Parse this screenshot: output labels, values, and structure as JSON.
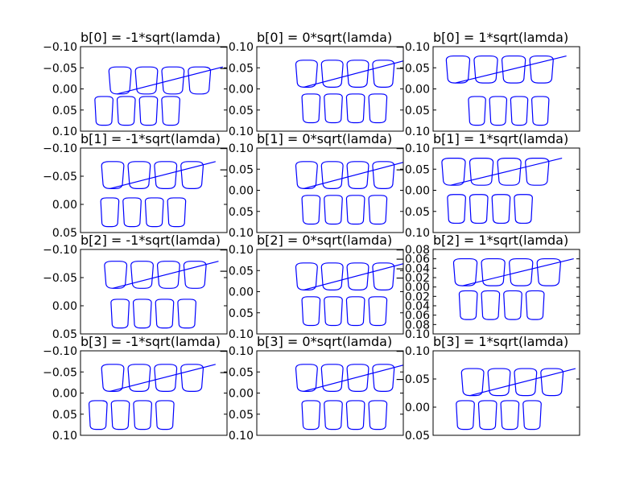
{
  "chart_data": [
    {
      "type": "line",
      "title": "b[0] = -1*sqrt(lamda)",
      "yticks": [
        "−0.10",
        "−0.05",
        "0.00",
        "0.05",
        "0.10"
      ],
      "ylim": [
        -0.1,
        0.1
      ],
      "color": "#0000ff"
    },
    {
      "type": "line",
      "title": "b[0] = 0*sqrt(lamda)",
      "yticks": [
        "−0.10",
        "−0.05",
        "0.00",
        "0.05",
        "0.10"
      ],
      "ylim": [
        -0.1,
        0.1
      ],
      "color": "#0000ff"
    },
    {
      "type": "line",
      "title": "b[0] = 1*sqrt(lamda)",
      "yticks": [
        "−0.10",
        "−0.05",
        "0.00",
        "0.05",
        "0.10"
      ],
      "ylim": [
        -0.1,
        0.1
      ],
      "color": "#0000ff"
    },
    {
      "type": "line",
      "title": "b[1] = -1*sqrt(lamda)",
      "yticks": [
        "−0.10",
        "−0.05",
        "0.00",
        "0.05"
      ],
      "ylim": [
        -0.1,
        0.08
      ],
      "color": "#0000ff"
    },
    {
      "type": "line",
      "title": "b[1] = 0*sqrt(lamda)",
      "yticks": [
        "−0.10",
        "−0.05",
        "0.00",
        "0.05",
        "0.10"
      ],
      "ylim": [
        -0.1,
        0.1
      ],
      "color": "#0000ff"
    },
    {
      "type": "line",
      "title": "b[1] = 1*sqrt(lamda)",
      "yticks": [
        "−0.10",
        "−0.05",
        "0.00",
        "0.05",
        "0.10"
      ],
      "ylim": [
        -0.1,
        0.1
      ],
      "color": "#0000ff"
    },
    {
      "type": "line",
      "title": "b[2] = -1*sqrt(lamda)",
      "yticks": [
        "−0.10",
        "−0.05",
        "0.00",
        "0.05"
      ],
      "ylim": [
        -0.1,
        0.08
      ],
      "color": "#0000ff"
    },
    {
      "type": "line",
      "title": "b[2] = 0*sqrt(lamda)",
      "yticks": [
        "−0.10",
        "−0.05",
        "0.00",
        "0.05",
        "0.10"
      ],
      "ylim": [
        -0.1,
        0.1
      ],
      "color": "#0000ff"
    },
    {
      "type": "line",
      "title": "b[2] = 1*sqrt(lamda)",
      "yticks": [
        "−0.08",
        "−0.06",
        "−0.04",
        "−0.02",
        "0.00",
        "0.02",
        "0.04",
        "0.06",
        "0.08",
        "0.10"
      ],
      "ylim": [
        -0.08,
        0.1
      ],
      "color": "#0000ff"
    },
    {
      "type": "line",
      "title": "b[3] = -1*sqrt(lamda)",
      "yticks": [
        "−0.10",
        "−0.05",
        "0.00",
        "0.05",
        "0.10"
      ],
      "ylim": [
        -0.1,
        0.1
      ],
      "color": "#0000ff"
    },
    {
      "type": "line",
      "title": "b[3] = 0*sqrt(lamda)",
      "yticks": [
        "−0.10",
        "−0.05",
        "0.00",
        "0.05",
        "0.10"
      ],
      "ylim": [
        -0.1,
        0.1
      ],
      "color": "#0000ff"
    },
    {
      "type": "line",
      "title": "b[3] = 1*sqrt(lamda)",
      "yticks": [
        "−0.10",
        "−0.05",
        "0.00",
        "0.05"
      ],
      "ylim": [
        -0.1,
        0.08
      ],
      "color": "#0000ff"
    }
  ]
}
